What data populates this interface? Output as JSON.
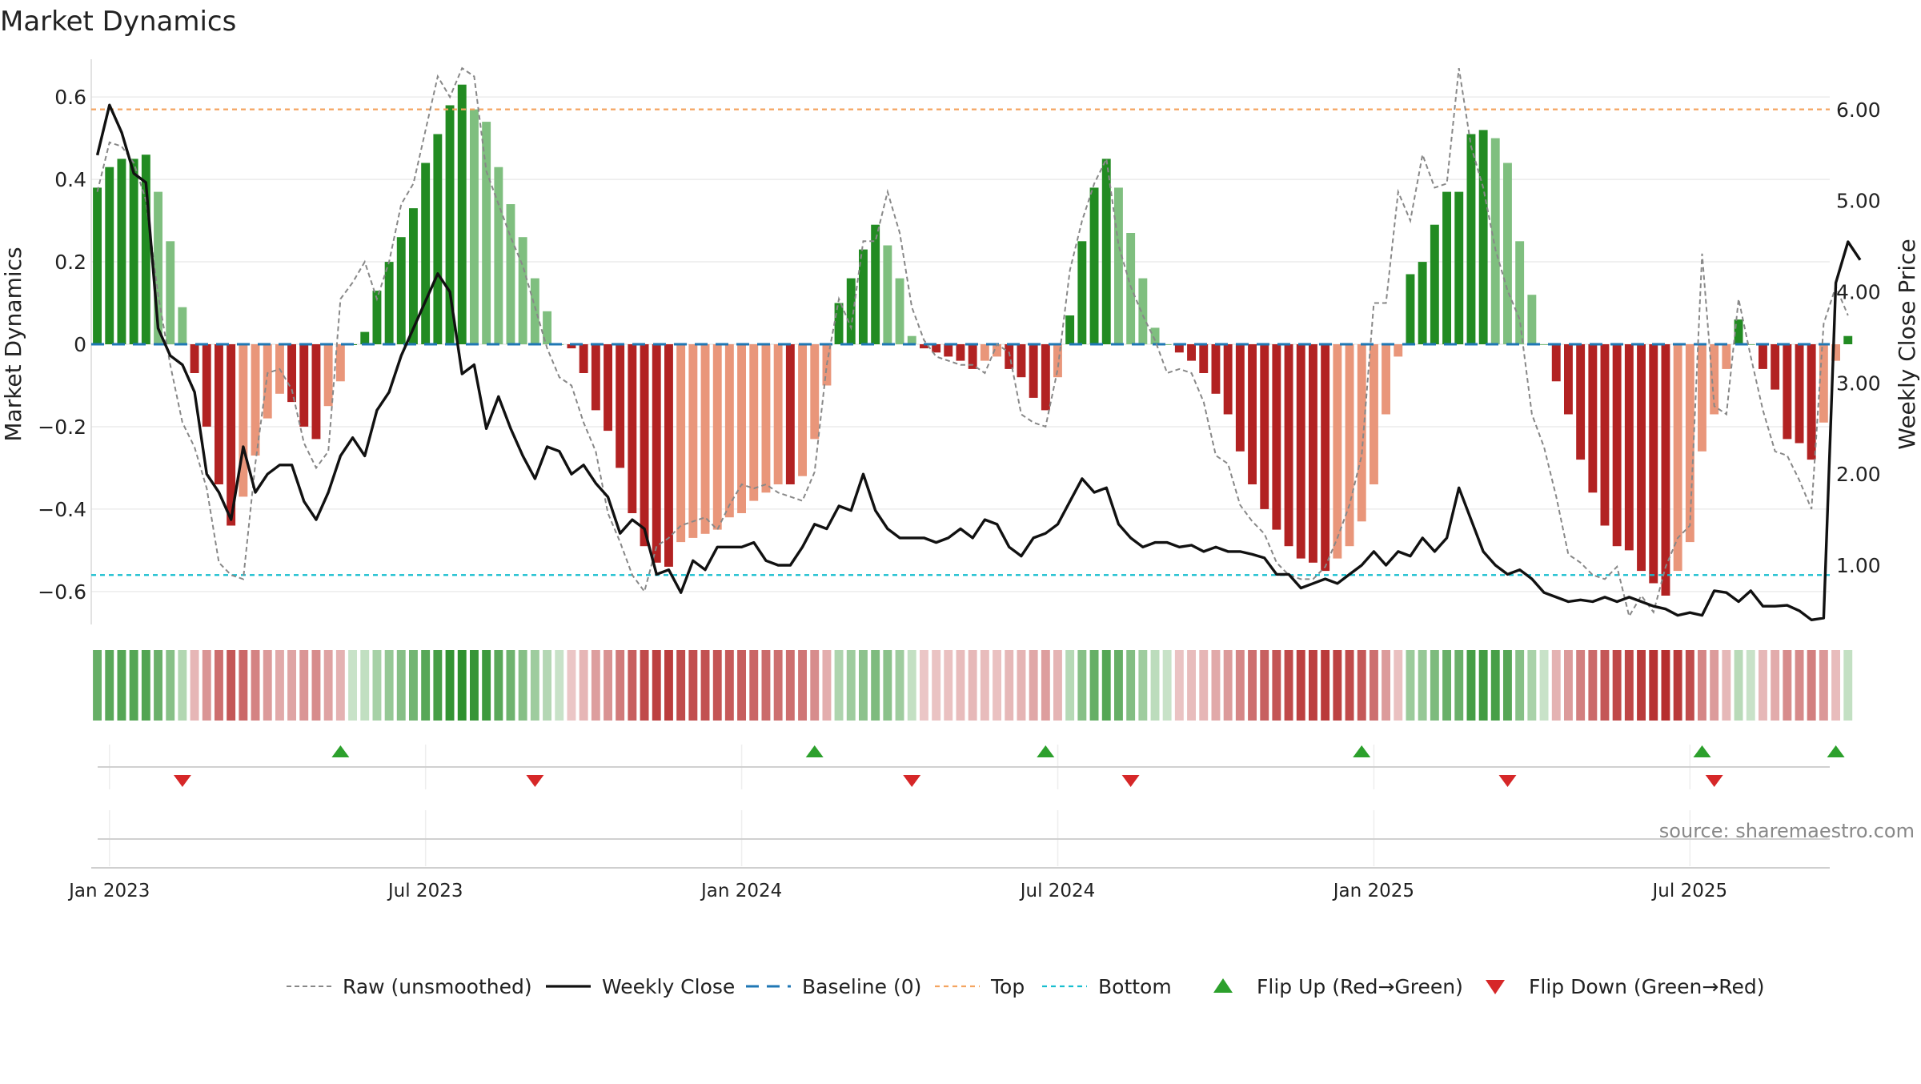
{
  "chart_data": {
    "type": "bar",
    "title": "Market Dynamics",
    "ylabel": "Market Dynamics",
    "ylabel_right": "Weekly Close Price",
    "ylim": [
      -0.68,
      0.68
    ],
    "ylim_right": [
      0.35,
      6.5
    ],
    "yticks": [
      {
        "value": 0.6,
        "label": "0.6"
      },
      {
        "value": 0.4,
        "label": "0.4"
      },
      {
        "value": 0.2,
        "label": "0.2"
      },
      {
        "value": 0,
        "label": "0"
      },
      {
        "value": -0.2,
        "label": "−0.2"
      },
      {
        "value": -0.4,
        "label": "−0.4"
      },
      {
        "value": -0.6,
        "label": "−0.6"
      }
    ],
    "yticks_right": [
      {
        "value": 6,
        "label": "6.00"
      },
      {
        "value": 5,
        "label": "5.00"
      },
      {
        "value": 4,
        "label": "4.00"
      },
      {
        "value": 3,
        "label": "3.00"
      },
      {
        "value": 2,
        "label": "2.00"
      },
      {
        "value": 1,
        "label": "1.00"
      }
    ],
    "xticks": [
      {
        "week": 0,
        "label": "Jan 2023"
      },
      {
        "week": 26,
        "label": "Jul 2023"
      },
      {
        "week": 52,
        "label": "Jan 2024"
      },
      {
        "week": 78,
        "label": "Jul 2024"
      },
      {
        "week": 104,
        "label": "Jan 2025"
      },
      {
        "week": 130,
        "label": "Jul 2025"
      }
    ],
    "x_start_week": -1.5,
    "x_end_week": 141.5,
    "top_level": 0.57,
    "bottom_level": -0.56,
    "series": [
      {
        "name": "Market Dynamics (smoothed)",
        "start_week": -1,
        "values": [
          0.38,
          0.43,
          0.45,
          0.45,
          0.46,
          0.37,
          0.25,
          0.09,
          -0.07,
          -0.2,
          -0.34,
          -0.44,
          -0.37,
          -0.27,
          -0.18,
          -0.12,
          -0.14,
          -0.2,
          -0.23,
          -0.15,
          -0.09,
          0,
          0.03,
          0.13,
          0.2,
          0.26,
          0.33,
          0.44,
          0.51,
          0.58,
          0.63,
          0.57,
          0.54,
          0.43,
          0.34,
          0.26,
          0.16,
          0.08,
          0,
          -0.01,
          -0.07,
          -0.16,
          -0.21,
          -0.3,
          -0.41,
          -0.49,
          -0.53,
          -0.54,
          -0.48,
          -0.47,
          -0.46,
          -0.45,
          -0.42,
          -0.41,
          -0.38,
          -0.36,
          -0.34,
          -0.34,
          -0.32,
          -0.23,
          -0.1,
          0.1,
          0.16,
          0.23,
          0.29,
          0.24,
          0.16,
          0.02,
          -0.01,
          -0.02,
          -0.03,
          -0.04,
          -0.06,
          -0.04,
          -0.03,
          -0.06,
          -0.08,
          -0.13,
          -0.16,
          -0.08,
          0.07,
          0.25,
          0.38,
          0.45,
          0.38,
          0.27,
          0.16,
          0.04,
          0,
          -0.02,
          -0.04,
          -0.07,
          -0.12,
          -0.17,
          -0.26,
          -0.34,
          -0.4,
          -0.45,
          -0.49,
          -0.52,
          -0.53,
          -0.55,
          -0.52,
          -0.49,
          -0.43,
          -0.34,
          -0.17,
          -0.03,
          0.17,
          0.2,
          0.29,
          0.37,
          0.37,
          0.51,
          0.52,
          0.5,
          0.44,
          0.25,
          0.12,
          0,
          -0.09,
          -0.17,
          -0.28,
          -0.36,
          -0.44,
          -0.49,
          -0.5,
          -0.55,
          -0.58,
          -0.61,
          -0.55,
          -0.48,
          -0.26,
          -0.17,
          -0.06,
          0.06,
          0,
          -0.06,
          -0.11,
          -0.23,
          -0.24,
          -0.28,
          -0.19,
          -0.04,
          0.02
        ]
      },
      {
        "name": "Raw (unsmoothed)",
        "start_week": -1,
        "values": [
          0.37,
          0.49,
          0.48,
          0.44,
          0.35,
          0.12,
          -0.05,
          -0.19,
          -0.25,
          -0.35,
          -0.53,
          -0.56,
          -0.57,
          -0.29,
          -0.07,
          -0.06,
          -0.11,
          -0.24,
          -0.3,
          -0.26,
          0.11,
          0.15,
          0.2,
          0.11,
          0.2,
          0.34,
          0.39,
          0.52,
          0.65,
          0.6,
          0.67,
          0.65,
          0.42,
          0.34,
          0.26,
          0.19,
          0.09,
          -0.01,
          -0.08,
          -0.1,
          -0.19,
          -0.26,
          -0.41,
          -0.48,
          -0.56,
          -0.6,
          -0.49,
          -0.47,
          -0.44,
          -0.43,
          -0.42,
          -0.45,
          -0.39,
          -0.34,
          -0.35,
          -0.34,
          -0.36,
          -0.37,
          -0.38,
          -0.31,
          -0.05,
          0.11,
          0.04,
          0.25,
          0.25,
          0.37,
          0.27,
          0.09,
          0.01,
          -0.03,
          -0.04,
          -0.05,
          -0.05,
          -0.07,
          0,
          -0.02,
          -0.17,
          -0.19,
          -0.2,
          -0.06,
          0.18,
          0.3,
          0.39,
          0.45,
          0.24,
          0.14,
          0.07,
          0.01,
          -0.07,
          -0.06,
          -0.07,
          -0.14,
          -0.27,
          -0.29,
          -0.39,
          -0.43,
          -0.46,
          -0.53,
          -0.56,
          -0.57,
          -0.57,
          -0.54,
          -0.47,
          -0.39,
          -0.27,
          0.1,
          0.1,
          0.37,
          0.3,
          0.46,
          0.38,
          0.39,
          0.67,
          0.48,
          0.38,
          0.23,
          0.13,
          0.06,
          -0.17,
          -0.25,
          -0.37,
          -0.51,
          -0.53,
          -0.56,
          -0.57,
          -0.54,
          -0.66,
          -0.61,
          -0.65,
          -0.54,
          -0.47,
          -0.44,
          0.22,
          -0.15,
          -0.17,
          0.11,
          -0.03,
          -0.16,
          -0.26,
          -0.27,
          -0.33,
          -0.4,
          0.05,
          0.14,
          0.07
        ]
      },
      {
        "name": "Weekly Close",
        "axis": "right",
        "start_week": -1,
        "values": [
          5.5,
          6.05,
          5.75,
          5.3,
          5.2,
          3.6,
          3.3,
          3.2,
          2.9,
          2.0,
          1.8,
          1.5,
          2.3,
          1.8,
          2.0,
          2.1,
          2.1,
          1.7,
          1.5,
          1.8,
          2.2,
          2.4,
          2.2,
          2.7,
          2.9,
          3.3,
          3.6,
          3.9,
          4.2,
          4.0,
          3.1,
          3.2,
          2.5,
          2.85,
          2.5,
          2.2,
          1.95,
          2.3,
          2.25,
          2.0,
          2.1,
          1.9,
          1.75,
          1.35,
          1.5,
          1.4,
          0.9,
          0.95,
          0.7,
          1.05,
          0.95,
          1.2,
          1.2,
          1.2,
          1.25,
          1.05,
          1.0,
          1.0,
          1.2,
          1.45,
          1.4,
          1.65,
          1.6,
          2.0,
          1.6,
          1.4,
          1.3,
          1.3,
          1.3,
          1.25,
          1.3,
          1.4,
          1.3,
          1.5,
          1.45,
          1.2,
          1.1,
          1.3,
          1.35,
          1.45,
          1.7,
          1.95,
          1.8,
          1.85,
          1.45,
          1.3,
          1.2,
          1.25,
          1.25,
          1.2,
          1.22,
          1.15,
          1.2,
          1.15,
          1.15,
          1.12,
          1.08,
          0.9,
          0.9,
          0.75,
          0.8,
          0.85,
          0.8,
          0.9,
          1.0,
          1.15,
          1.0,
          1.15,
          1.1,
          1.3,
          1.15,
          1.3,
          1.85,
          1.5,
          1.15,
          1.0,
          0.9,
          0.95,
          0.85,
          0.7,
          0.65,
          0.6,
          0.62,
          0.6,
          0.65,
          0.6,
          0.65,
          0.6,
          0.55,
          0.52,
          0.45,
          0.48,
          0.45,
          0.72,
          0.7,
          0.6,
          0.72,
          0.55,
          0.55,
          0.56,
          0.5,
          0.4,
          0.42,
          4.1,
          4.55,
          4.35
        ]
      }
    ],
    "flip_up_weeks": [
      19,
      58,
      77,
      103,
      131,
      142
    ],
    "flip_down_weeks": [
      6,
      35,
      66,
      84,
      115,
      132
    ],
    "legend": [
      {
        "label": "Raw (unsmoothed)",
        "style": "dashed-gray"
      },
      {
        "label": "Weekly Close",
        "style": "solid-black"
      },
      {
        "label": "Baseline (0)",
        "style": "dashed-blue"
      },
      {
        "label": "Top",
        "style": "dashed-orange"
      },
      {
        "label": "Bottom",
        "style": "dashed-cyan"
      },
      {
        "label": "Flip Up (Red→Green)",
        "style": "triangle-up-green"
      },
      {
        "label": "Flip Down (Green→Red)",
        "style": "triangle-down-red"
      }
    ],
    "legend_position": "bottom-center",
    "source_note": "source: sharemaestro.com"
  },
  "colors": {
    "bull_strong": "#228b22",
    "bull_weak": "#7fbf7f",
    "bear_strong": "#b22222",
    "bear_weak": "#e9967a",
    "raw": "#888888",
    "close": "#111111",
    "baseline": "#1f77b4",
    "top": "#f4a460",
    "bottom": "#17becf",
    "flip_up": "#2ca02c",
    "flip_down": "#d62728"
  }
}
